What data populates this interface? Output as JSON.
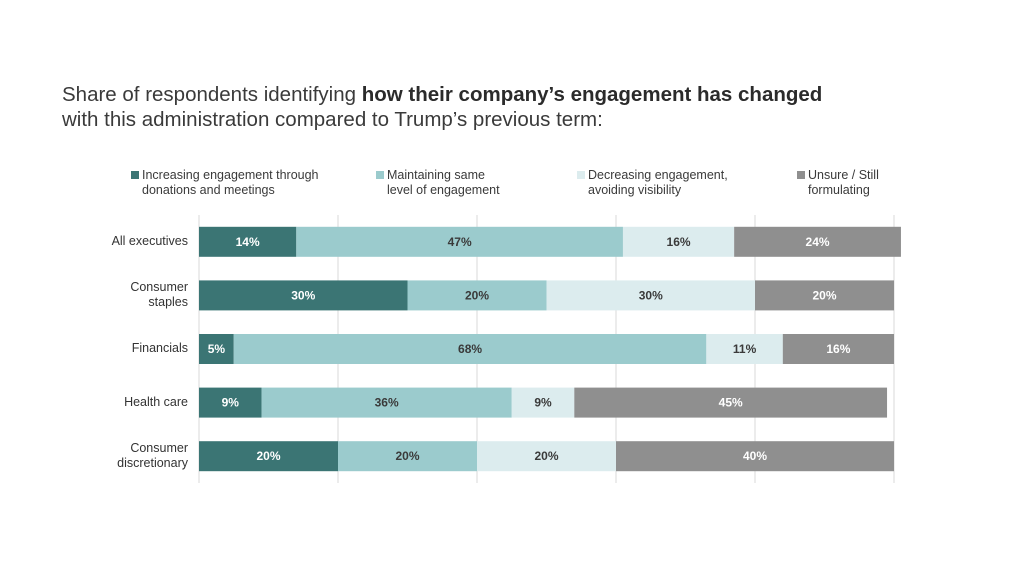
{
  "title": {
    "prefix": "Share of respondents identifying ",
    "bold": "how their company’s engagement has changed",
    "suffix": "with this administration compared to Trump’s previous term:"
  },
  "chart_data": {
    "type": "bar",
    "orientation": "horizontal",
    "stacked": true,
    "categories": [
      "All executives",
      "Consumer\nstaples",
      "Financials",
      "Health care",
      "Consumer\ndiscretionary"
    ],
    "series": [
      {
        "name": "Increasing engagement through\ndonations and meetings",
        "color": "#3b7574",
        "label_color": "#ffffff",
        "values": [
          14,
          30,
          5,
          9,
          20
        ]
      },
      {
        "name": "Maintaining same\nlevel of engagement",
        "color": "#9bcbcd",
        "label_color": "#3a3a3a",
        "values": [
          47,
          20,
          68,
          36,
          20
        ]
      },
      {
        "name": "Decreasing engagement,\navoiding visibility",
        "color": "#dcecee",
        "label_color": "#3a3a3a",
        "values": [
          16,
          30,
          11,
          9,
          20
        ]
      },
      {
        "name": "Unsure / Still\nformulating",
        "color": "#8f8f8f",
        "label_color": "#ffffff",
        "values": [
          24,
          20,
          16,
          45,
          40
        ]
      }
    ],
    "value_suffix": "%",
    "xlim": [
      0,
      100
    ],
    "grid": true,
    "legend": "top"
  }
}
